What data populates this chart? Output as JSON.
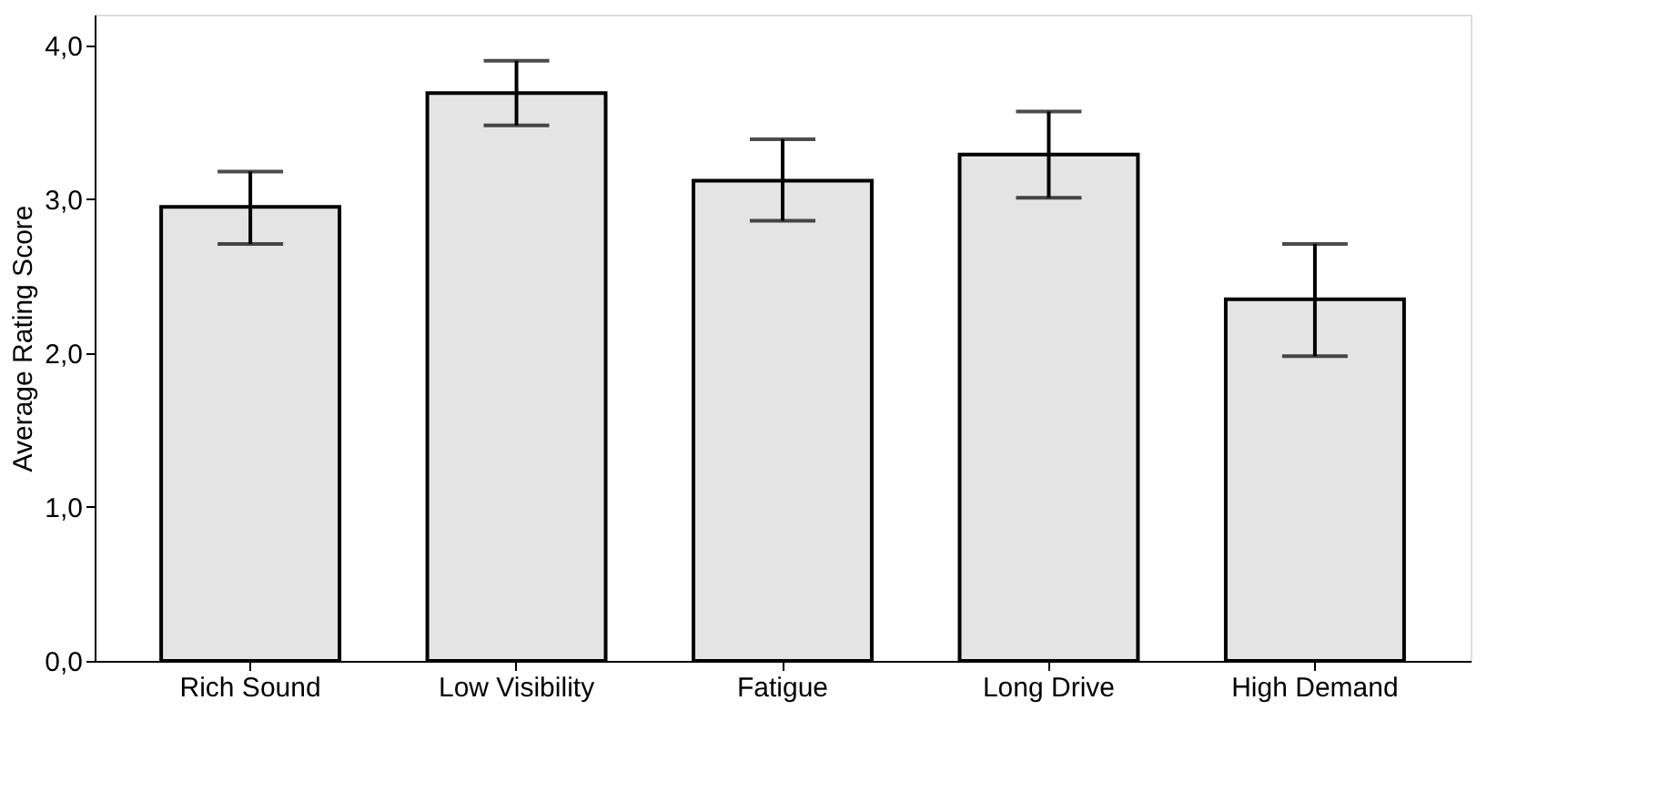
{
  "chart_data": {
    "type": "bar",
    "ylabel": "Average Rating Score",
    "categories": [
      "Rich Sound",
      "Low Visibility",
      "Fatigue",
      "Long Drive",
      "High Demand"
    ],
    "values": [
      2.95,
      3.69,
      3.12,
      3.29,
      2.35
    ],
    "color": "#e4e4e4",
    "errors": [
      [
        2.71,
        3.18
      ],
      [
        3.48,
        3.9
      ],
      [
        2.86,
        3.39
      ],
      [
        3.01,
        3.57
      ],
      [
        1.98,
        2.71
      ]
    ],
    "ylim": [
      0,
      4.2
    ],
    "yticks": [
      {
        "value": 0,
        "label": "0,0"
      },
      {
        "value": 1,
        "label": "1,0"
      },
      {
        "value": 2,
        "label": "2,0"
      },
      {
        "value": 3,
        "label": "3,0"
      },
      {
        "value": 4,
        "label": "4,0"
      }
    ],
    "grid": false
  }
}
